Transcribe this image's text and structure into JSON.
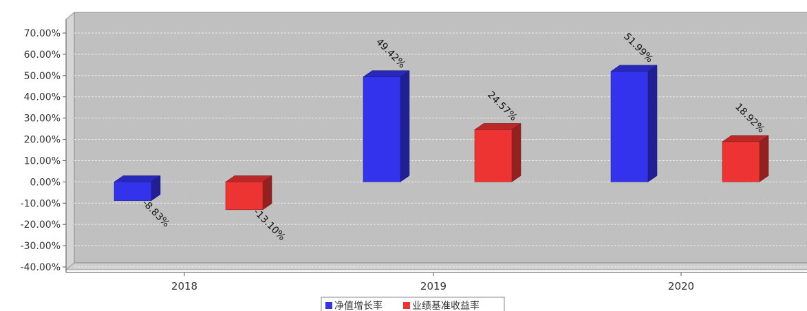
{
  "chart_data": {
    "type": "bar",
    "title": "",
    "categories": [
      "2018",
      "2019",
      "2020"
    ],
    "series": [
      {
        "name": "净值增长率",
        "color": "#3333ee",
        "values": [
          -8.83,
          49.42,
          51.99
        ],
        "labels": [
          "-8.83%",
          "49.42%",
          "51.99%"
        ]
      },
      {
        "name": "业绩基准收益率",
        "color": "#ee3333",
        "values": [
          -13.1,
          24.57,
          18.92
        ],
        "labels": [
          "-13.10%",
          "24.57%",
          "18.92%"
        ]
      }
    ],
    "yticks": [
      "-40.00%",
      "-30.00%",
      "-20.00%",
      "-10.00%",
      "0.00%",
      "10.00%",
      "20.00%",
      "30.00%",
      "40.00%",
      "50.00%",
      "60.00%",
      "70.00%"
    ],
    "ylim": [
      -40,
      70
    ],
    "xlabel": "",
    "ylabel": "",
    "grid": true,
    "legend_position": "bottom"
  }
}
